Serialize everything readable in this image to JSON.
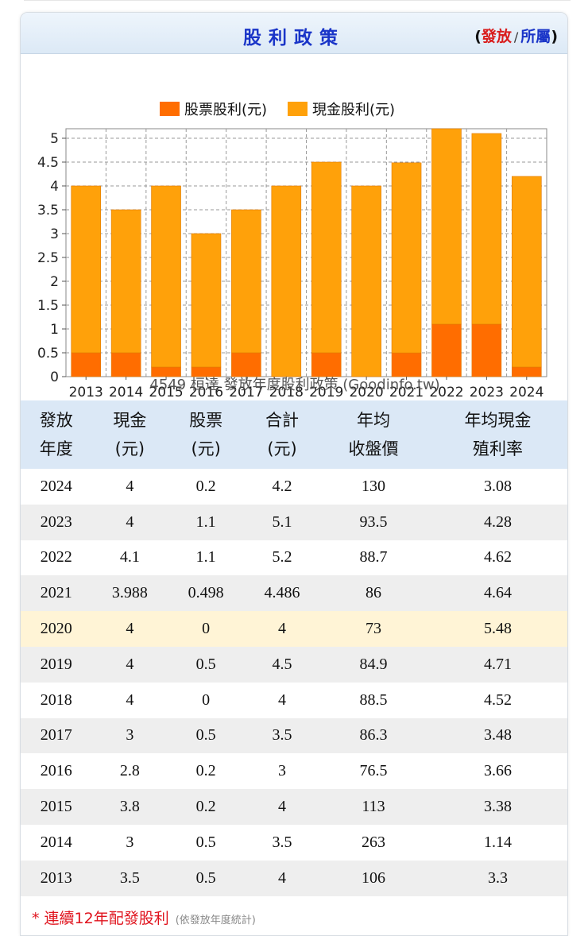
{
  "header": {
    "title": "股利政策",
    "link_open": "(",
    "link_issue": "發放",
    "link_sep": "/",
    "link_belong": "所屬",
    "link_close": ")"
  },
  "chart_data": {
    "type": "bar",
    "stacked": true,
    "title": "4549 桓達 發放年度股利政策 (Goodinfo.tw)",
    "categories": [
      "2013",
      "2014",
      "2015",
      "2016",
      "2017",
      "2018",
      "2019",
      "2020",
      "2021",
      "2022",
      "2023",
      "2024"
    ],
    "series": [
      {
        "name": "股票股利(元)",
        "color": "#ff6d00",
        "values": [
          0.5,
          0.5,
          0.2,
          0.2,
          0.5,
          0,
          0.5,
          0,
          0.498,
          1.1,
          1.1,
          0.2
        ]
      },
      {
        "name": "現金股利(元)",
        "color": "#ffa10a",
        "values": [
          3.5,
          3,
          3.8,
          2.8,
          3,
          4,
          4,
          4,
          3.988,
          4.1,
          4,
          4
        ]
      }
    ],
    "yticks": [
      "0",
      "0.5",
      "1",
      "1.5",
      "2",
      "2.5",
      "3",
      "3.5",
      "4",
      "4.5",
      "5"
    ],
    "ylim": [
      0,
      5.2
    ],
    "grid": true,
    "legend": "top"
  },
  "table": {
    "headers": [
      [
        "發放",
        "年度"
      ],
      [
        "現金",
        "(元)"
      ],
      [
        "股票",
        "(元)"
      ],
      [
        "合計",
        "(元)"
      ],
      [
        "年均",
        "收盤價"
      ],
      [
        "年均現金",
        "殖利率"
      ]
    ],
    "rows": [
      [
        "2024",
        "4",
        "0.2",
        "4.2",
        "130",
        "3.08"
      ],
      [
        "2023",
        "4",
        "1.1",
        "5.1",
        "93.5",
        "4.28"
      ],
      [
        "2022",
        "4.1",
        "1.1",
        "5.2",
        "88.7",
        "4.62"
      ],
      [
        "2021",
        "3.988",
        "0.498",
        "4.486",
        "86",
        "4.64"
      ],
      [
        "2020",
        "4",
        "0",
        "4",
        "73",
        "5.48"
      ],
      [
        "2019",
        "4",
        "0.5",
        "4.5",
        "84.9",
        "4.71"
      ],
      [
        "2018",
        "4",
        "0",
        "4",
        "88.5",
        "4.52"
      ],
      [
        "2017",
        "3",
        "0.5",
        "3.5",
        "86.3",
        "3.48"
      ],
      [
        "2016",
        "2.8",
        "0.2",
        "3",
        "76.5",
        "3.66"
      ],
      [
        "2015",
        "3.8",
        "0.2",
        "4",
        "113",
        "3.38"
      ],
      [
        "2014",
        "3",
        "0.5",
        "3.5",
        "263",
        "1.14"
      ],
      [
        "2013",
        "3.5",
        "0.5",
        "4",
        "106",
        "3.3"
      ]
    ],
    "highlight_year": "2020"
  },
  "footnote": {
    "text": "* 連續12年配發股利",
    "sub": "(依發放年度統計)"
  }
}
